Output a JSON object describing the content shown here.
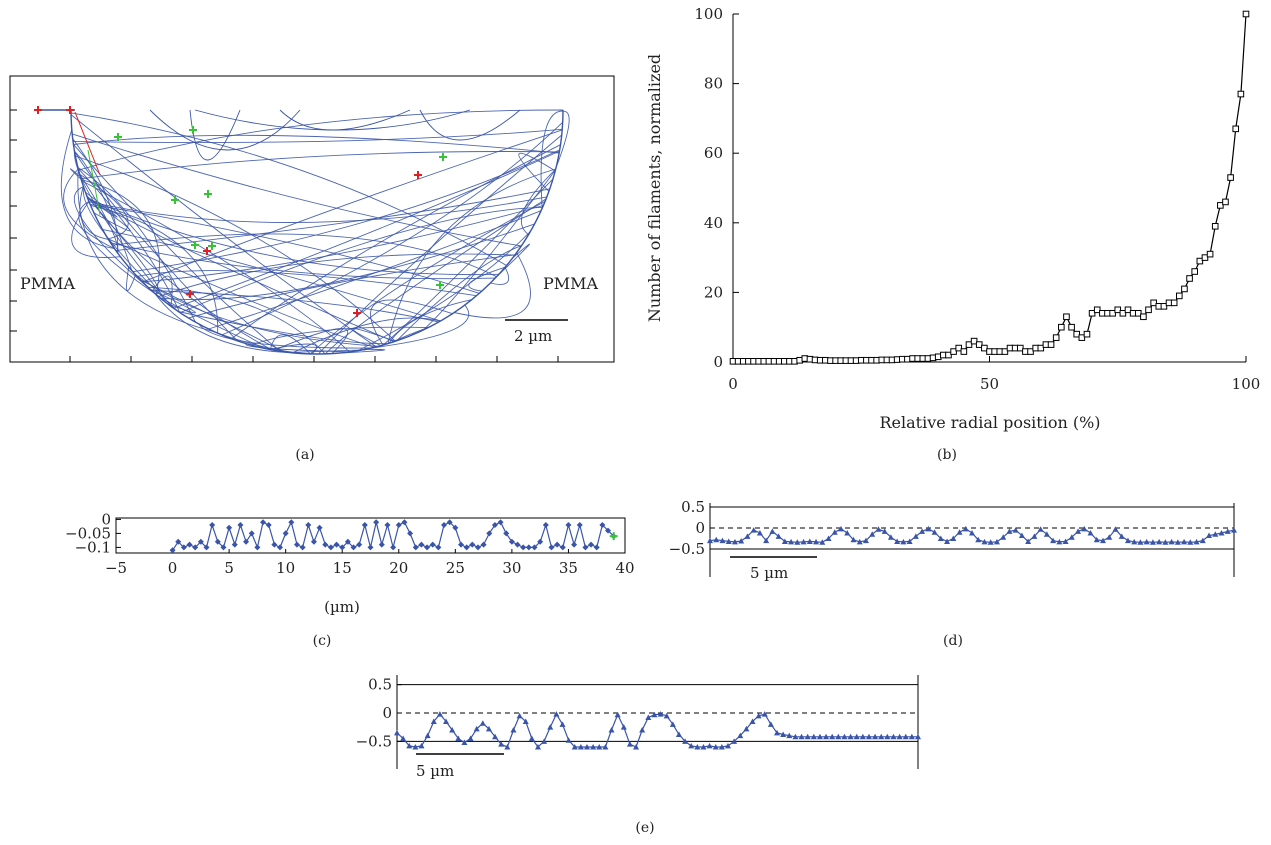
{
  "colors": {
    "trajectory": "#3a55a8",
    "axis": "#000000",
    "start_marker": "#e02020",
    "end_marker": "#38c238"
  },
  "panels": {
    "a": {
      "label": "(a)",
      "left_text": "PMMA",
      "right_text": "PMMA",
      "scale_bar": "2 µm",
      "scale_bar_um": 2
    },
    "b": {
      "label": "(b)"
    },
    "c": {
      "label": "(c)"
    },
    "d": {
      "label": "(d)",
      "scale_bar": "5 µm"
    },
    "e": {
      "label": "(e)",
      "scale_bar": "5 µm"
    }
  },
  "chart_data": [
    {
      "id": "b",
      "type": "line",
      "xlabel": "Relative radial position (%)",
      "ylabel": "Number of filaments, normalized",
      "xlim": [
        0,
        100
      ],
      "ylim": [
        0,
        100
      ],
      "xticks": [
        "0",
        "50",
        "100"
      ],
      "yticks": [
        "0",
        "20",
        "40",
        "60",
        "80",
        "100"
      ],
      "marker": "square",
      "grid": false,
      "x": [
        0,
        1,
        2,
        3,
        4,
        5,
        6,
        7,
        8,
        9,
        10,
        11,
        12,
        13,
        14,
        15,
        16,
        17,
        18,
        19,
        20,
        21,
        22,
        23,
        24,
        25,
        26,
        27,
        28,
        29,
        30,
        31,
        32,
        33,
        34,
        35,
        36,
        37,
        38,
        39,
        40,
        41,
        42,
        43,
        44,
        45,
        46,
        47,
        48,
        49,
        50,
        51,
        52,
        53,
        54,
        55,
        56,
        57,
        58,
        59,
        60,
        61,
        62,
        63,
        64,
        65,
        66,
        67,
        68,
        69,
        70,
        71,
        72,
        73,
        74,
        75,
        76,
        77,
        78,
        79,
        80,
        81,
        82,
        83,
        84,
        85,
        86,
        87,
        88,
        89,
        90,
        91,
        92,
        93,
        94,
        95,
        96,
        97,
        98,
        99,
        100
      ],
      "y": [
        0.2,
        0.2,
        0.2,
        0.2,
        0.2,
        0.2,
        0.2,
        0.2,
        0.2,
        0.2,
        0.2,
        0.2,
        0.2,
        0.5,
        1,
        0.8,
        0.6,
        0.5,
        0.5,
        0.4,
        0.4,
        0.4,
        0.4,
        0.4,
        0.4,
        0.5,
        0.5,
        0.5,
        0.5,
        0.6,
        0.6,
        0.6,
        0.7,
        0.8,
        0.8,
        1,
        1,
        1,
        1,
        1.2,
        1.5,
        2,
        2,
        3,
        4,
        3,
        5,
        6,
        5,
        4,
        3,
        3,
        3,
        3,
        4,
        4,
        4,
        3,
        3,
        4,
        4,
        5,
        5,
        7,
        10,
        13,
        10,
        8,
        7,
        8,
        14,
        15,
        14,
        14,
        14,
        15,
        14,
        15,
        14,
        14,
        13,
        15,
        17,
        16,
        16,
        17,
        17,
        19,
        21,
        24,
        26,
        29,
        30,
        31,
        39,
        45,
        46,
        53,
        67,
        77,
        100
      ]
    },
    {
      "id": "c",
      "type": "line",
      "xlabel": "(µm)",
      "xlim": [
        -5,
        40
      ],
      "ylim": [
        -0.12,
        0.005
      ],
      "xticks": [
        "−5",
        "0",
        "5",
        "10",
        "15",
        "20",
        "25",
        "30",
        "35",
        "40"
      ],
      "yticks": [
        "0",
        "−0.05",
        "−0.1"
      ],
      "marker": "diamond",
      "x": [
        0,
        0.5,
        1,
        1.5,
        2,
        2.5,
        3,
        3.5,
        4,
        4.5,
        5,
        5.5,
        6,
        6.5,
        7,
        7.5,
        8,
        8.5,
        9,
        9.5,
        10,
        10.5,
        11,
        11.5,
        12,
        12.5,
        13,
        13.5,
        14,
        14.5,
        15,
        15.5,
        16,
        16.5,
        17,
        17.5,
        18,
        18.5,
        19,
        19.5,
        20,
        20.5,
        21,
        21.5,
        22,
        22.5,
        23,
        23.5,
        24,
        24.5,
        25,
        25.5,
        26,
        26.5,
        27,
        27.5,
        28,
        28.5,
        29,
        29.5,
        30,
        30.5,
        31,
        31.5,
        32,
        32.5,
        33,
        33.5,
        34,
        34.5,
        35,
        35.5,
        36,
        36.5,
        37,
        37.5,
        38,
        38.5,
        39
      ],
      "y": [
        -0.11,
        -0.08,
        -0.1,
        -0.09,
        -0.1,
        -0.08,
        -0.1,
        -0.02,
        -0.08,
        -0.1,
        -0.03,
        -0.09,
        -0.02,
        -0.08,
        -0.05,
        -0.1,
        -0.01,
        -0.02,
        -0.09,
        -0.1,
        -0.05,
        -0.01,
        -0.09,
        -0.1,
        -0.02,
        -0.08,
        -0.03,
        -0.09,
        -0.1,
        -0.09,
        -0.1,
        -0.08,
        -0.1,
        -0.09,
        -0.02,
        -0.1,
        -0.01,
        -0.09,
        -0.02,
        -0.1,
        -0.02,
        -0.01,
        -0.05,
        -0.1,
        -0.09,
        -0.1,
        -0.09,
        -0.1,
        -0.02,
        -0.01,
        -0.03,
        -0.09,
        -0.1,
        -0.09,
        -0.1,
        -0.09,
        -0.05,
        -0.02,
        -0.01,
        -0.05,
        -0.08,
        -0.09,
        -0.1,
        -0.1,
        -0.1,
        -0.08,
        -0.02,
        -0.1,
        -0.09,
        -0.1,
        -0.02,
        -0.09,
        -0.02,
        -0.1,
        -0.09,
        -0.1,
        -0.02,
        -0.04,
        -0.06
      ]
    },
    {
      "id": "d",
      "type": "line",
      "ylim": [
        -0.5,
        0.5
      ],
      "yticks": [
        "0.5",
        "0",
        "−0.5"
      ],
      "marker": "triangle",
      "x": [
        0,
        0.5,
        1,
        1.5,
        2,
        2.5,
        3,
        3.5,
        4,
        4.5,
        5,
        5.5,
        6,
        6.5,
        7,
        7.5,
        8,
        8.5,
        9,
        9.5,
        10,
        10.5,
        11,
        11.5,
        12,
        12.5,
        13,
        13.5,
        14,
        14.5,
        15,
        15.5,
        16,
        16.5,
        17,
        17.5,
        18,
        18.5,
        19,
        19.5,
        20,
        20.5,
        21,
        21.5,
        22,
        22.5,
        23,
        23.5,
        24,
        24.5,
        25,
        25.5,
        26,
        26.5,
        27,
        27.5,
        28,
        28.5,
        29,
        29.5,
        30,
        30.5,
        31,
        31.5,
        32,
        32.5,
        33,
        33.5,
        34,
        34.5,
        35,
        35.5,
        36,
        36.5,
        37,
        37.5,
        38,
        38.5,
        39,
        39.5,
        40,
        40.5,
        41,
        41.5,
        42
      ],
      "y": [
        -0.3,
        -0.28,
        -0.3,
        -0.32,
        -0.33,
        -0.31,
        -0.2,
        -0.05,
        -0.12,
        -0.3,
        -0.08,
        -0.2,
        -0.32,
        -0.33,
        -0.34,
        -0.33,
        -0.32,
        -0.33,
        -0.34,
        -0.25,
        -0.1,
        -0.02,
        -0.12,
        -0.28,
        -0.33,
        -0.3,
        -0.15,
        -0.03,
        -0.08,
        -0.22,
        -0.32,
        -0.33,
        -0.32,
        -0.2,
        -0.08,
        -0.02,
        -0.1,
        -0.25,
        -0.32,
        -0.25,
        -0.1,
        -0.02,
        -0.12,
        -0.28,
        -0.33,
        -0.34,
        -0.33,
        -0.22,
        -0.08,
        -0.05,
        -0.18,
        -0.32,
        -0.2,
        -0.03,
        -0.15,
        -0.3,
        -0.33,
        -0.32,
        -0.22,
        -0.08,
        -0.02,
        -0.12,
        -0.28,
        -0.3,
        -0.22,
        -0.03,
        -0.2,
        -0.3,
        -0.33,
        -0.34,
        -0.33,
        -0.34,
        -0.33,
        -0.34,
        -0.33,
        -0.34,
        -0.33,
        -0.34,
        -0.33,
        -0.3,
        -0.18,
        -0.15,
        -0.12,
        -0.08,
        -0.05
      ]
    },
    {
      "id": "e",
      "type": "line",
      "ylim": [
        -0.6,
        0.6
      ],
      "yticks": [
        "0.5",
        "0",
        "−0.5"
      ],
      "marker": "triangle",
      "x": [
        0,
        0.5,
        1,
        1.5,
        2,
        2.5,
        3,
        3.5,
        4,
        4.5,
        5,
        5.5,
        6,
        6.5,
        7,
        7.5,
        8,
        8.5,
        9,
        9.5,
        10,
        10.5,
        11,
        11.5,
        12,
        12.5,
        13,
        13.5,
        14,
        14.5,
        15,
        15.5,
        16,
        16.5,
        17,
        17.5,
        18,
        18.5,
        19,
        19.5,
        20,
        20.5,
        21,
        21.5,
        22,
        22.5,
        23,
        23.5,
        24,
        24.5,
        25,
        25.5,
        26,
        26.5,
        27,
        27.5,
        28,
        28.5,
        29,
        29.5,
        30,
        30.5,
        31,
        31.5,
        32,
        32.5,
        33,
        33.5,
        34,
        34.5,
        35,
        35.5,
        36,
        36.5,
        37,
        37.5,
        38,
        38.5,
        39,
        39.5,
        40,
        40.5,
        41,
        41.5,
        42,
        42.5
      ],
      "y": [
        -0.35,
        -0.45,
        -0.58,
        -0.6,
        -0.58,
        -0.4,
        -0.15,
        -0.02,
        -0.15,
        -0.3,
        -0.45,
        -0.52,
        -0.45,
        -0.28,
        -0.18,
        -0.28,
        -0.42,
        -0.55,
        -0.6,
        -0.3,
        -0.05,
        -0.15,
        -0.45,
        -0.6,
        -0.5,
        -0.25,
        -0.02,
        -0.2,
        -0.48,
        -0.6,
        -0.6,
        -0.6,
        -0.6,
        -0.6,
        -0.6,
        -0.3,
        -0.03,
        -0.25,
        -0.55,
        -0.6,
        -0.3,
        -0.08,
        -0.03,
        -0.02,
        -0.05,
        -0.2,
        -0.38,
        -0.5,
        -0.58,
        -0.6,
        -0.6,
        -0.58,
        -0.6,
        -0.6,
        -0.58,
        -0.5,
        -0.4,
        -0.28,
        -0.15,
        -0.05,
        -0.02,
        -0.2,
        -0.35,
        -0.38,
        -0.4,
        -0.42,
        -0.42,
        -0.42,
        -0.42,
        -0.42,
        -0.42,
        -0.42,
        -0.42,
        -0.42,
        -0.42,
        -0.42,
        -0.42,
        -0.42,
        -0.42,
        -0.42,
        -0.42,
        -0.42,
        -0.42,
        -0.42,
        -0.42,
        -0.42
      ]
    }
  ]
}
